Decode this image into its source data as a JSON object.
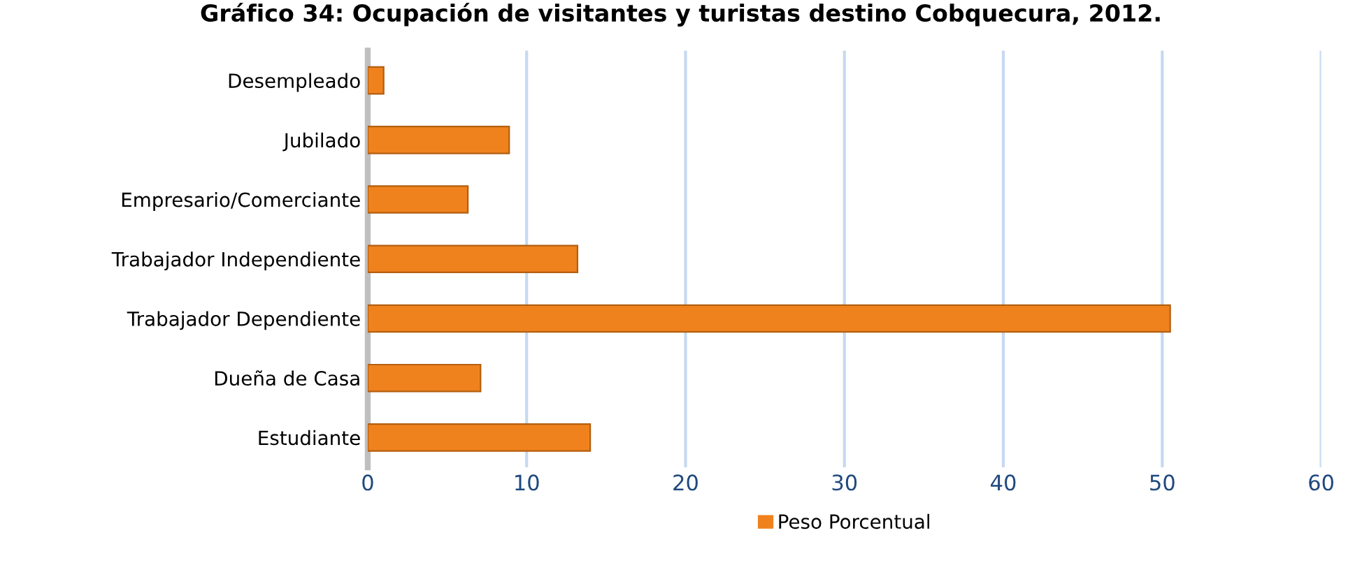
{
  "chart_data": {
    "type": "bar",
    "orientation": "horizontal",
    "title": "Gráfico 34: Ocupación de visitantes y turistas destino Cobquecura, 2012.",
    "categories": [
      "Desempleado",
      "Jubilado",
      "Empresario/Comerciante",
      "Trabajador Independiente",
      "Trabajador Dependiente",
      "Dueña de Casa",
      "Estudiante"
    ],
    "series": [
      {
        "name": "Peso Porcentual",
        "color": "#f0821e",
        "values": [
          1.0,
          8.9,
          6.3,
          13.2,
          50.5,
          7.1,
          14.0
        ]
      }
    ],
    "xlim": [
      0,
      60
    ],
    "xticks": [
      0,
      10,
      20,
      30,
      40,
      50,
      60
    ],
    "grid": "x",
    "legend": "bottom"
  }
}
